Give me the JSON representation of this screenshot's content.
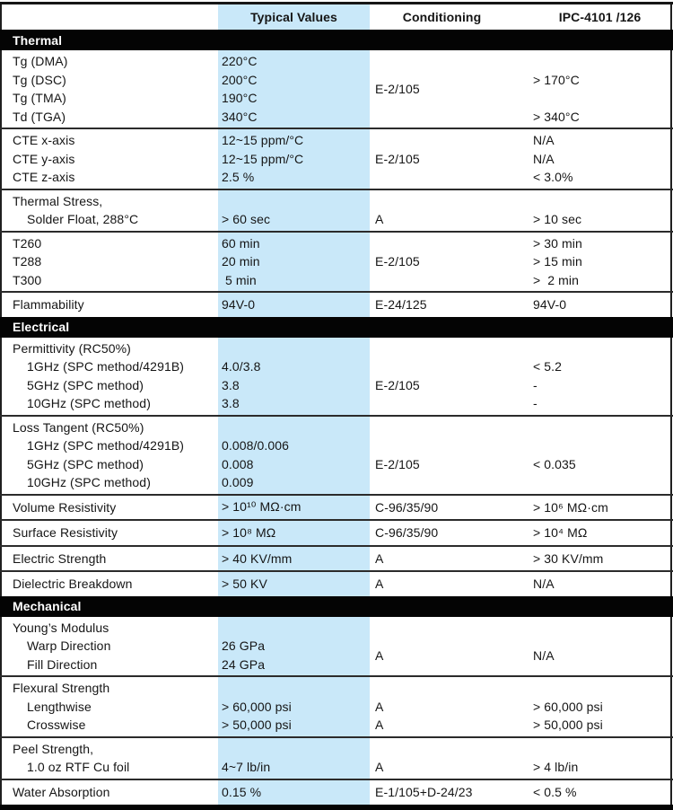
{
  "header": {
    "typical_label": "Typical Values",
    "conditioning_label": "Conditioning",
    "ipc_label": "IPC-4101 /126"
  },
  "colors": {
    "highlight_band": "#c9e8f9",
    "section_bar": "#040404",
    "divider": "#2b2b2b",
    "text": "#151515"
  },
  "sections": [
    {
      "title": "Thermal",
      "groups": [
        {
          "rows": [
            {
              "label": "Tg (DMA)",
              "typical": "220°C"
            },
            {
              "label": "Tg (DSC)",
              "typical": "200°C",
              "ipc": "> 170°C"
            },
            {
              "label": "Tg (TMA)",
              "typical": "190°C"
            },
            {
              "label": "Td (TGA)",
              "typical": "340°C",
              "ipc": "> 340°C"
            }
          ],
          "cond_span": {
            "text": "E-2/105",
            "from": 1,
            "to": 4
          }
        },
        {
          "rows": [
            {
              "label": "CTE x-axis",
              "typical": "12~15 ppm/°C",
              "ipc": "N/A"
            },
            {
              "label": "CTE y-axis",
              "typical": "12~15 ppm/°C",
              "ipc": "N/A"
            },
            {
              "label": "CTE z-axis",
              "typical": "2.5 %",
              "ipc": "< 3.0%"
            }
          ],
          "cond_span": {
            "text": "E-2/105",
            "from": 1,
            "to": 3
          }
        },
        {
          "rows": [
            {
              "label": "Thermal Stress,"
            },
            {
              "label": "Solder Float, 288°C",
              "indent": true,
              "typical": "> 60 sec",
              "cond": "A",
              "ipc": "> 10 sec"
            }
          ]
        },
        {
          "rows": [
            {
              "label": "T260",
              "typical": "60 min",
              "ipc": "> 30 min"
            },
            {
              "label": "T288",
              "typical": "20 min",
              "ipc": "> 15 min"
            },
            {
              "label": "T300",
              "typical": " 5 min",
              "ipc": ">  2 min"
            }
          ],
          "cond_span": {
            "text": "E-2/105",
            "from": 1,
            "to": 3
          }
        },
        {
          "rows": [
            {
              "label": "Flammability",
              "typical": "94V-0",
              "cond": "E-24/125",
              "ipc": "94V-0"
            }
          ]
        }
      ]
    },
    {
      "title": "Electrical",
      "groups": [
        {
          "rows": [
            {
              "label": "Permittivity (RC50%)"
            },
            {
              "label": "1GHz (SPC method/4291B)",
              "indent": true,
              "typical": "4.0/3.8",
              "ipc": "< 5.2"
            },
            {
              "label": "5GHz (SPC method)",
              "indent": true,
              "typical": "3.8",
              "ipc": "-"
            },
            {
              "label": "10GHz (SPC method)",
              "indent": true,
              "typical": "3.8",
              "ipc": "-"
            }
          ],
          "cond_span": {
            "text": "E-2/105",
            "from": 2,
            "to": 4
          }
        },
        {
          "rows": [
            {
              "label": "Loss Tangent (RC50%)"
            },
            {
              "label": "1GHz (SPC method/4291B)",
              "indent": true,
              "typical": "0.008/0.006"
            },
            {
              "label": "5GHz (SPC method)",
              "indent": true,
              "typical": "0.008",
              "ipc": "< 0.035"
            },
            {
              "label": "10GHz (SPC method)",
              "indent": true,
              "typical": "0.009"
            }
          ],
          "cond_span": {
            "text": "E-2/105",
            "from": 2,
            "to": 4
          }
        },
        {
          "rows": [
            {
              "label": "Volume Resistivity",
              "typical": "> 10¹⁰ MΩ·cm",
              "cond": "C-96/35/90",
              "ipc": "> 10⁶ MΩ·cm"
            }
          ]
        },
        {
          "rows": [
            {
              "label": "Surface Resistivity",
              "typical": "> 10⁸ MΩ",
              "cond": "C-96/35/90",
              "ipc": "> 10⁴ MΩ"
            }
          ]
        },
        {
          "rows": [
            {
              "label": "Electric Strength",
              "typical": "> 40 KV/mm",
              "cond": "A",
              "ipc": "> 30 KV/mm"
            }
          ]
        },
        {
          "rows": [
            {
              "label": "Dielectric Breakdown",
              "typical": "> 50 KV",
              "cond": "A",
              "ipc": "N/A"
            }
          ]
        }
      ]
    },
    {
      "title": "Mechanical",
      "groups": [
        {
          "rows": [
            {
              "label": "Young’s Modulus"
            },
            {
              "label": "Warp Direction",
              "indent": true,
              "typical": "26 GPa"
            },
            {
              "label": "Fill Direction",
              "indent": true,
              "typical": "24 GPa"
            }
          ],
          "cond_span": {
            "text": "A",
            "from": 2,
            "to": 3
          },
          "ipc_span": {
            "text": "N/A",
            "from": 2,
            "to": 3
          }
        },
        {
          "rows": [
            {
              "label": "Flexural Strength"
            },
            {
              "label": "Lengthwise",
              "indent": true,
              "typical": "> 60,000 psi",
              "cond": "A",
              "ipc": "> 60,000 psi"
            },
            {
              "label": "Crosswise",
              "indent": true,
              "typical": "> 50,000 psi",
              "cond": "A",
              "ipc": "> 50,000 psi"
            }
          ]
        },
        {
          "rows": [
            {
              "label": "Peel Strength,"
            },
            {
              "label": "1.0 oz RTF Cu foil",
              "indent": true,
              "typical": "4~7 lb/in",
              "cond": "A",
              "ipc": "> 4 lb/in"
            }
          ]
        },
        {
          "rows": [
            {
              "label": "Water Absorption",
              "typical": "0.15 %",
              "cond": "E-1/105+D-24/23",
              "ipc": "< 0.5 %"
            }
          ]
        }
      ]
    }
  ]
}
